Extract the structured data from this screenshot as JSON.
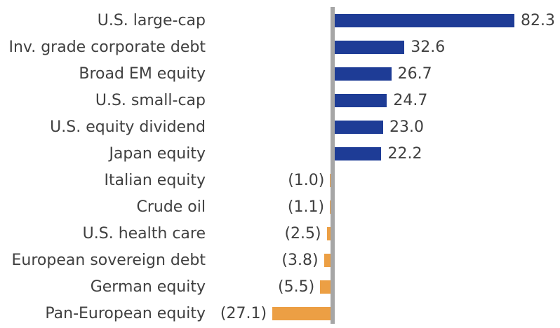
{
  "chart_data": {
    "type": "bar",
    "orientation": "horizontal",
    "negative_value_format": "parentheses",
    "legend": null,
    "axis": {
      "zero_line": true,
      "gridlines": false,
      "tick_labels": false
    },
    "xlim": [
      -30,
      100
    ],
    "categories": [
      "U.S. large-cap",
      "Inv. grade corporate debt",
      "Broad EM equity",
      "U.S. small-cap",
      "U.S. equity dividend",
      "Japan equity",
      "Italian equity",
      "Crude oil",
      "U.S. health care",
      "European sovereign debt",
      "German equity",
      "Pan-European equity"
    ],
    "rows": [
      {
        "category": "U.S. large-cap",
        "value": 82.3,
        "value_label": "82.3"
      },
      {
        "category": "Inv. grade corporate debt",
        "value": 32.6,
        "value_label": "32.6"
      },
      {
        "category": "Broad EM equity",
        "value": 26.7,
        "value_label": "26.7"
      },
      {
        "category": "U.S. small-cap",
        "value": 24.7,
        "value_label": "24.7"
      },
      {
        "category": "U.S. equity dividend",
        "value": 23.0,
        "value_label": "23.0"
      },
      {
        "category": "Japan equity",
        "value": 22.2,
        "value_label": "22.2"
      },
      {
        "category": "Italian equity",
        "value": -1.0,
        "value_label": "(1.0)"
      },
      {
        "category": "Crude oil",
        "value": -1.1,
        "value_label": "(1.1)"
      },
      {
        "category": "U.S. health care",
        "value": -2.5,
        "value_label": "(2.5)"
      },
      {
        "category": "European sovereign debt",
        "value": -3.8,
        "value_label": "(3.8)"
      },
      {
        "category": "German equity",
        "value": -5.5,
        "value_label": "(5.5)"
      },
      {
        "category": "Pan-European equity",
        "value": -27.1,
        "value_label": "(27.1)"
      }
    ],
    "colors": {
      "positive_bar": "#1E3C96",
      "negative_bar": "#EC9F44",
      "zero_line": "#A6A6A6",
      "text": "#404040",
      "background": "#FFFFFF"
    }
  }
}
